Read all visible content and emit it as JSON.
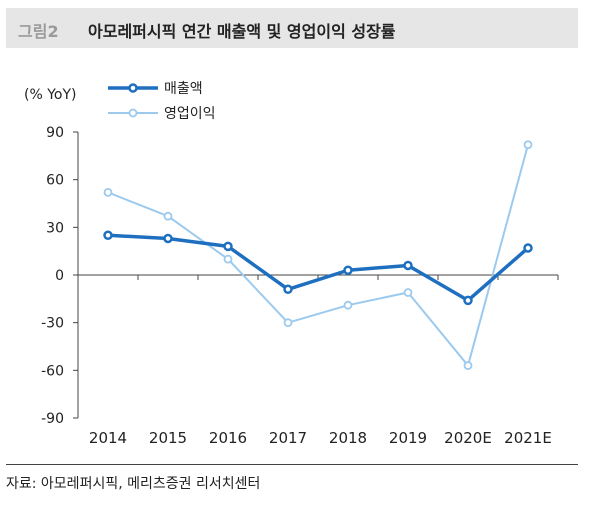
{
  "header": {
    "figure_label": "그림2",
    "title": "아모레퍼시픽 연간 매출액 및 영업이익 성장률"
  },
  "chart_data": {
    "type": "line",
    "title": "아모레퍼시픽 연간 매출액 및 영업이익 성장률",
    "ylabel": "(% YoY)",
    "xlabel": "",
    "categories": [
      "2014",
      "2015",
      "2016",
      "2017",
      "2018",
      "2019",
      "2020E",
      "2021E"
    ],
    "ylim": [
      -90,
      90
    ],
    "yticks": [
      90,
      60,
      30,
      0,
      -30,
      -60,
      -90
    ],
    "grid": false,
    "legend_position": "top-left",
    "series": [
      {
        "name": "매출액",
        "color": "#1f6fc0",
        "values": [
          25,
          23,
          18,
          -9,
          3,
          6,
          -16,
          17
        ]
      },
      {
        "name": "영업이익",
        "color": "#9ccaee",
        "values": [
          52,
          37,
          10,
          -30,
          -19,
          -11,
          -57,
          82
        ]
      }
    ]
  },
  "footer": {
    "source": "자료: 아모레퍼시픽, 메리츠증권 리서치센터"
  }
}
